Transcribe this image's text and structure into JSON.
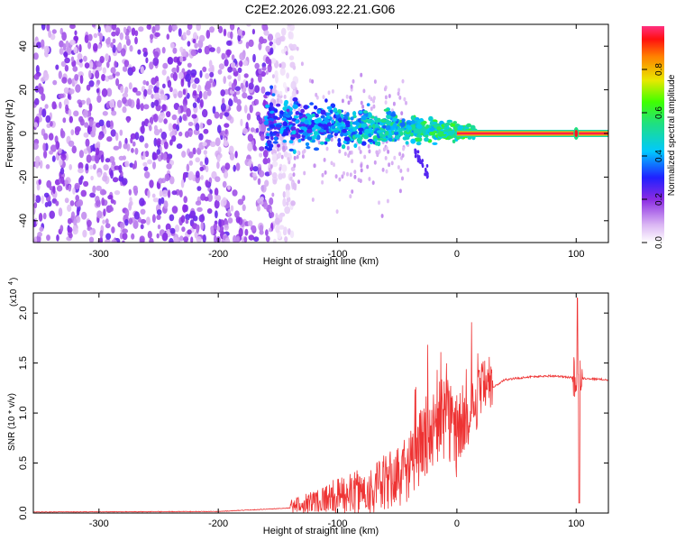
{
  "title": "C2E2.2026.093.22.21.G06",
  "chart_data": [
    {
      "type": "heatmap",
      "xlabel": "Height of straight line (km)",
      "ylabel": "Frequency (Hz)",
      "xlim": [
        -355,
        127
      ],
      "ylim": [
        -50,
        50
      ],
      "xticks": [
        -300,
        -200,
        -100,
        0,
        100
      ],
      "yticks": [
        -40,
        -20,
        0,
        20,
        40
      ],
      "colorbar": {
        "label": "Normalized spectral amplitude",
        "range": [
          0,
          1
        ],
        "ticks": [
          "0.0",
          "0.2",
          "0.4",
          "0.6",
          "0.8"
        ],
        "colormap": "rainbow (white/violet at 0 to magenta-red at 1)"
      },
      "noise_region_x": [
        -355,
        -155
      ],
      "tone_frequency": 0,
      "tone_start_x": 0
    },
    {
      "type": "line",
      "xlabel": "Height of straight line (km)",
      "ylabel": "SNR (10 * v/v)",
      "yscale_label": "(x10",
      "yscale_exponent": "4",
      "xlim": [
        -355,
        127
      ],
      "ylim": [
        0,
        2.2
      ],
      "xticks": [
        -300,
        -200,
        -100,
        0,
        100
      ],
      "yticks": [
        "0.0",
        "0.5",
        "1.0",
        "1.5",
        "2.0"
      ],
      "color": "#ee3333",
      "series_profile": {
        "x": [
          -355,
          -200,
          -140,
          -110,
          -90,
          -70,
          -50,
          -40,
          -30,
          -20,
          -10,
          0,
          10,
          20,
          30,
          40,
          60,
          80,
          100,
          127
        ],
        "y": [
          0.01,
          0.015,
          0.05,
          0.12,
          0.15,
          0.18,
          0.3,
          0.4,
          0.6,
          0.75,
          0.9,
          0.7,
          0.9,
          1.15,
          1.25,
          1.33,
          1.36,
          1.37,
          1.35,
          1.33
        ]
      },
      "spike": {
        "x": 101,
        "max": 2.15,
        "min": 0.1
      }
    }
  ]
}
